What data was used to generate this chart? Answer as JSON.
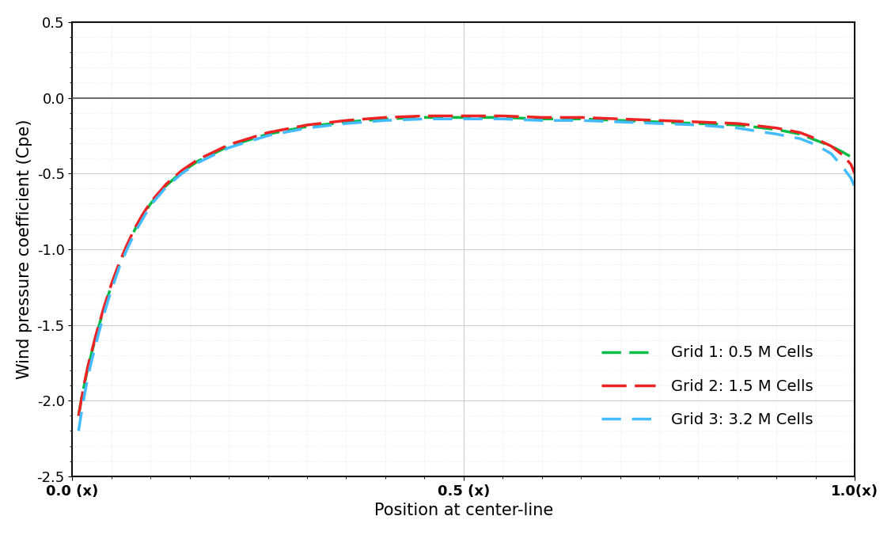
{
  "title": "",
  "xlabel": "Position at center-line",
  "ylabel": "Wind pressure coefficient (Cpe)",
  "xlim": [
    0.0,
    1.0
  ],
  "ylim": [
    -2.5,
    0.5
  ],
  "xticks": [
    0.0,
    0.5,
    1.0
  ],
  "xtick_labels": [
    "0.0 (x)",
    "0.5 (x)",
    "1.0(x)"
  ],
  "yticks": [
    0.5,
    0.0,
    -0.5,
    -1.0,
    -1.5,
    -2.0,
    -2.5
  ],
  "ytick_labels": [
    "0.5",
    "0.0",
    "-0.5",
    "-1.0",
    "-1.5",
    "-2.0",
    "-2.5"
  ],
  "grid_major_color": "#cccccc",
  "grid_minor_color": "#e5e5e5",
  "background_color": "#ffffff",
  "zero_line_color": "#555555",
  "lines": [
    {
      "label": "Grid 1: 0.5 M Cells",
      "color": "#00bb44",
      "linewidth": 2.5,
      "x": [
        0.008,
        0.012,
        0.016,
        0.02,
        0.025,
        0.03,
        0.035,
        0.04,
        0.045,
        0.05,
        0.06,
        0.07,
        0.08,
        0.09,
        0.1,
        0.12,
        0.14,
        0.16,
        0.18,
        0.2,
        0.25,
        0.3,
        0.35,
        0.4,
        0.45,
        0.5,
        0.55,
        0.6,
        0.65,
        0.7,
        0.75,
        0.8,
        0.85,
        0.9,
        0.93,
        0.95,
        0.97,
        0.985,
        0.995,
        1.0
      ],
      "y": [
        -2.1,
        -1.98,
        -1.88,
        -1.78,
        -1.68,
        -1.58,
        -1.49,
        -1.4,
        -1.32,
        -1.24,
        -1.1,
        -0.98,
        -0.87,
        -0.78,
        -0.7,
        -0.58,
        -0.49,
        -0.42,
        -0.37,
        -0.32,
        -0.24,
        -0.19,
        -0.16,
        -0.14,
        -0.13,
        -0.13,
        -0.13,
        -0.14,
        -0.14,
        -0.15,
        -0.16,
        -0.17,
        -0.18,
        -0.21,
        -0.24,
        -0.28,
        -0.32,
        -0.36,
        -0.39,
        -0.41
      ]
    },
    {
      "label": "Grid 2: 1.5 M Cells",
      "color": "#ee2222",
      "linewidth": 2.5,
      "x": [
        0.008,
        0.012,
        0.016,
        0.02,
        0.025,
        0.03,
        0.035,
        0.04,
        0.045,
        0.05,
        0.06,
        0.07,
        0.08,
        0.09,
        0.1,
        0.12,
        0.14,
        0.16,
        0.18,
        0.2,
        0.25,
        0.3,
        0.35,
        0.4,
        0.45,
        0.5,
        0.55,
        0.6,
        0.65,
        0.7,
        0.75,
        0.8,
        0.85,
        0.9,
        0.93,
        0.95,
        0.97,
        0.985,
        0.995,
        1.0
      ],
      "y": [
        -2.1,
        -1.98,
        -1.87,
        -1.77,
        -1.67,
        -1.57,
        -1.48,
        -1.39,
        -1.31,
        -1.23,
        -1.09,
        -0.97,
        -0.86,
        -0.77,
        -0.69,
        -0.57,
        -0.48,
        -0.41,
        -0.36,
        -0.31,
        -0.23,
        -0.18,
        -0.15,
        -0.13,
        -0.12,
        -0.12,
        -0.12,
        -0.13,
        -0.13,
        -0.14,
        -0.15,
        -0.16,
        -0.17,
        -0.2,
        -0.23,
        -0.27,
        -0.32,
        -0.38,
        -0.44,
        -0.5
      ]
    },
    {
      "label": "Grid 3: 3.2 M Cells",
      "color": "#44bbff",
      "linewidth": 2.5,
      "x": [
        0.008,
        0.012,
        0.016,
        0.02,
        0.025,
        0.03,
        0.035,
        0.04,
        0.045,
        0.05,
        0.06,
        0.07,
        0.08,
        0.09,
        0.1,
        0.12,
        0.14,
        0.16,
        0.18,
        0.2,
        0.25,
        0.3,
        0.35,
        0.4,
        0.45,
        0.5,
        0.55,
        0.6,
        0.65,
        0.7,
        0.75,
        0.8,
        0.85,
        0.9,
        0.93,
        0.95,
        0.97,
        0.985,
        0.995,
        1.0
      ],
      "y": [
        -2.2,
        -2.07,
        -1.95,
        -1.84,
        -1.73,
        -1.63,
        -1.53,
        -1.44,
        -1.35,
        -1.27,
        -1.12,
        -1.0,
        -0.89,
        -0.8,
        -0.71,
        -0.59,
        -0.5,
        -0.43,
        -0.38,
        -0.33,
        -0.25,
        -0.2,
        -0.17,
        -0.15,
        -0.14,
        -0.14,
        -0.14,
        -0.15,
        -0.15,
        -0.16,
        -0.17,
        -0.18,
        -0.2,
        -0.24,
        -0.27,
        -0.31,
        -0.37,
        -0.46,
        -0.53,
        -0.59
      ]
    }
  ],
  "fontsize_labels": 15,
  "fontsize_ticks": 13,
  "fontsize_legend": 14
}
